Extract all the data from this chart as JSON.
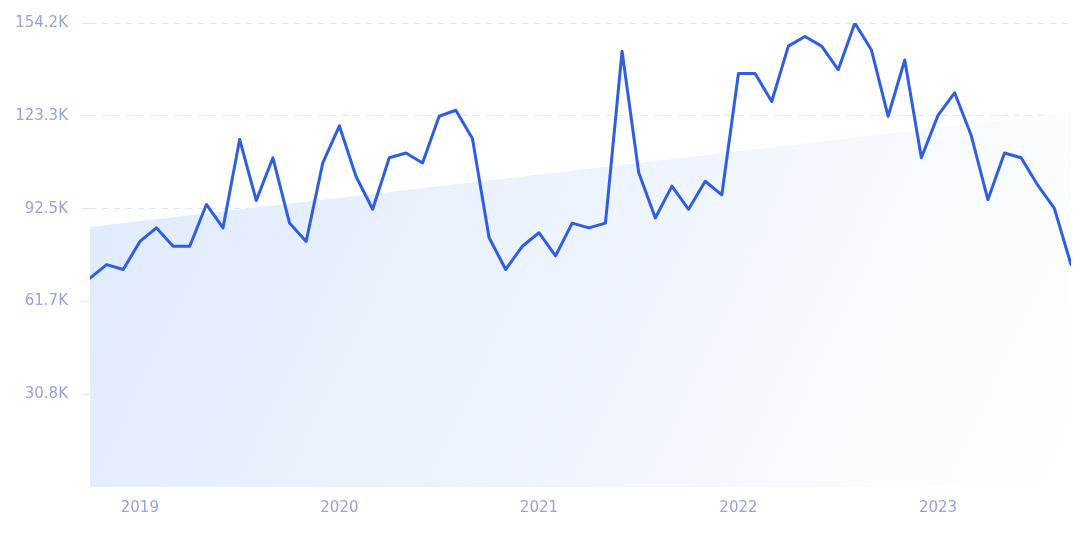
{
  "chart_data": {
    "type": "line",
    "x": [
      "2018-10",
      "2018-11",
      "2018-12",
      "2019-01",
      "2019-02",
      "2019-03",
      "2019-04",
      "2019-05",
      "2019-06",
      "2019-07",
      "2019-08",
      "2019-09",
      "2019-10",
      "2019-11",
      "2019-12",
      "2020-01",
      "2020-02",
      "2020-03",
      "2020-04",
      "2020-05",
      "2020-06",
      "2020-07",
      "2020-08",
      "2020-09",
      "2020-10",
      "2020-11",
      "2020-12",
      "2021-01",
      "2021-02",
      "2021-03",
      "2021-04",
      "2021-05",
      "2021-06",
      "2021-07",
      "2021-08",
      "2021-09",
      "2021-10",
      "2021-11",
      "2021-12",
      "2022-01",
      "2022-02",
      "2022-03",
      "2022-04",
      "2022-05",
      "2022-06",
      "2022-07",
      "2022-08",
      "2022-09",
      "2022-10",
      "2022-11",
      "2022-12",
      "2023-01",
      "2023-02",
      "2023-03",
      "2023-04",
      "2023-05",
      "2023-06",
      "2023-07",
      "2023-08",
      "2023-09"
    ],
    "series": [
      {
        "type": "area",
        "color": "#dde9fb",
        "x": [
          "2018-10",
          "2023-09"
        ],
        "values": [
          86400,
          124500
        ]
      },
      {
        "color": "#2f5fe0",
        "values": [
          69400,
          73900,
          72300,
          81600,
          86100,
          80000,
          80000,
          93900,
          86100,
          115500,
          95200,
          109400,
          87700,
          81600,
          107700,
          120000,
          103200,
          92300,
          109400,
          111000,
          107700,
          123200,
          125200,
          115800,
          82900,
          72300,
          80000,
          84500,
          76800,
          87700,
          86100,
          87700,
          144800,
          104500,
          89400,
          100000,
          92300,
          101600,
          97100,
          137400,
          137400,
          128100,
          146500,
          149700,
          146500,
          138700,
          154200,
          145200,
          123200,
          141900,
          109400,
          123500,
          131000,
          116800,
          95500,
          111000,
          109400,
          100300,
          92600,
          73900
        ]
      }
    ],
    "xlim": [
      "2018-10",
      "2023-09"
    ],
    "xticks": [
      {
        "value": "2019-01",
        "label": "2019"
      },
      {
        "value": "2020-01",
        "label": "2020"
      },
      {
        "value": "2021-01",
        "label": "2021"
      },
      {
        "value": "2022-01",
        "label": "2022"
      },
      {
        "value": "2023-01",
        "label": "2023"
      }
    ],
    "ylim": [
      0,
      154200
    ],
    "yticks": [
      {
        "value": 30800,
        "label": "30.8K"
      },
      {
        "value": 61700,
        "label": "61.7K"
      },
      {
        "value": 92500,
        "label": "92.5K"
      },
      {
        "value": 123300,
        "label": "123.3K"
      },
      {
        "value": 154200,
        "label": "154.2K"
      }
    ],
    "grid": "y",
    "legend": false,
    "marker": "none",
    "line_style": "solid"
  }
}
